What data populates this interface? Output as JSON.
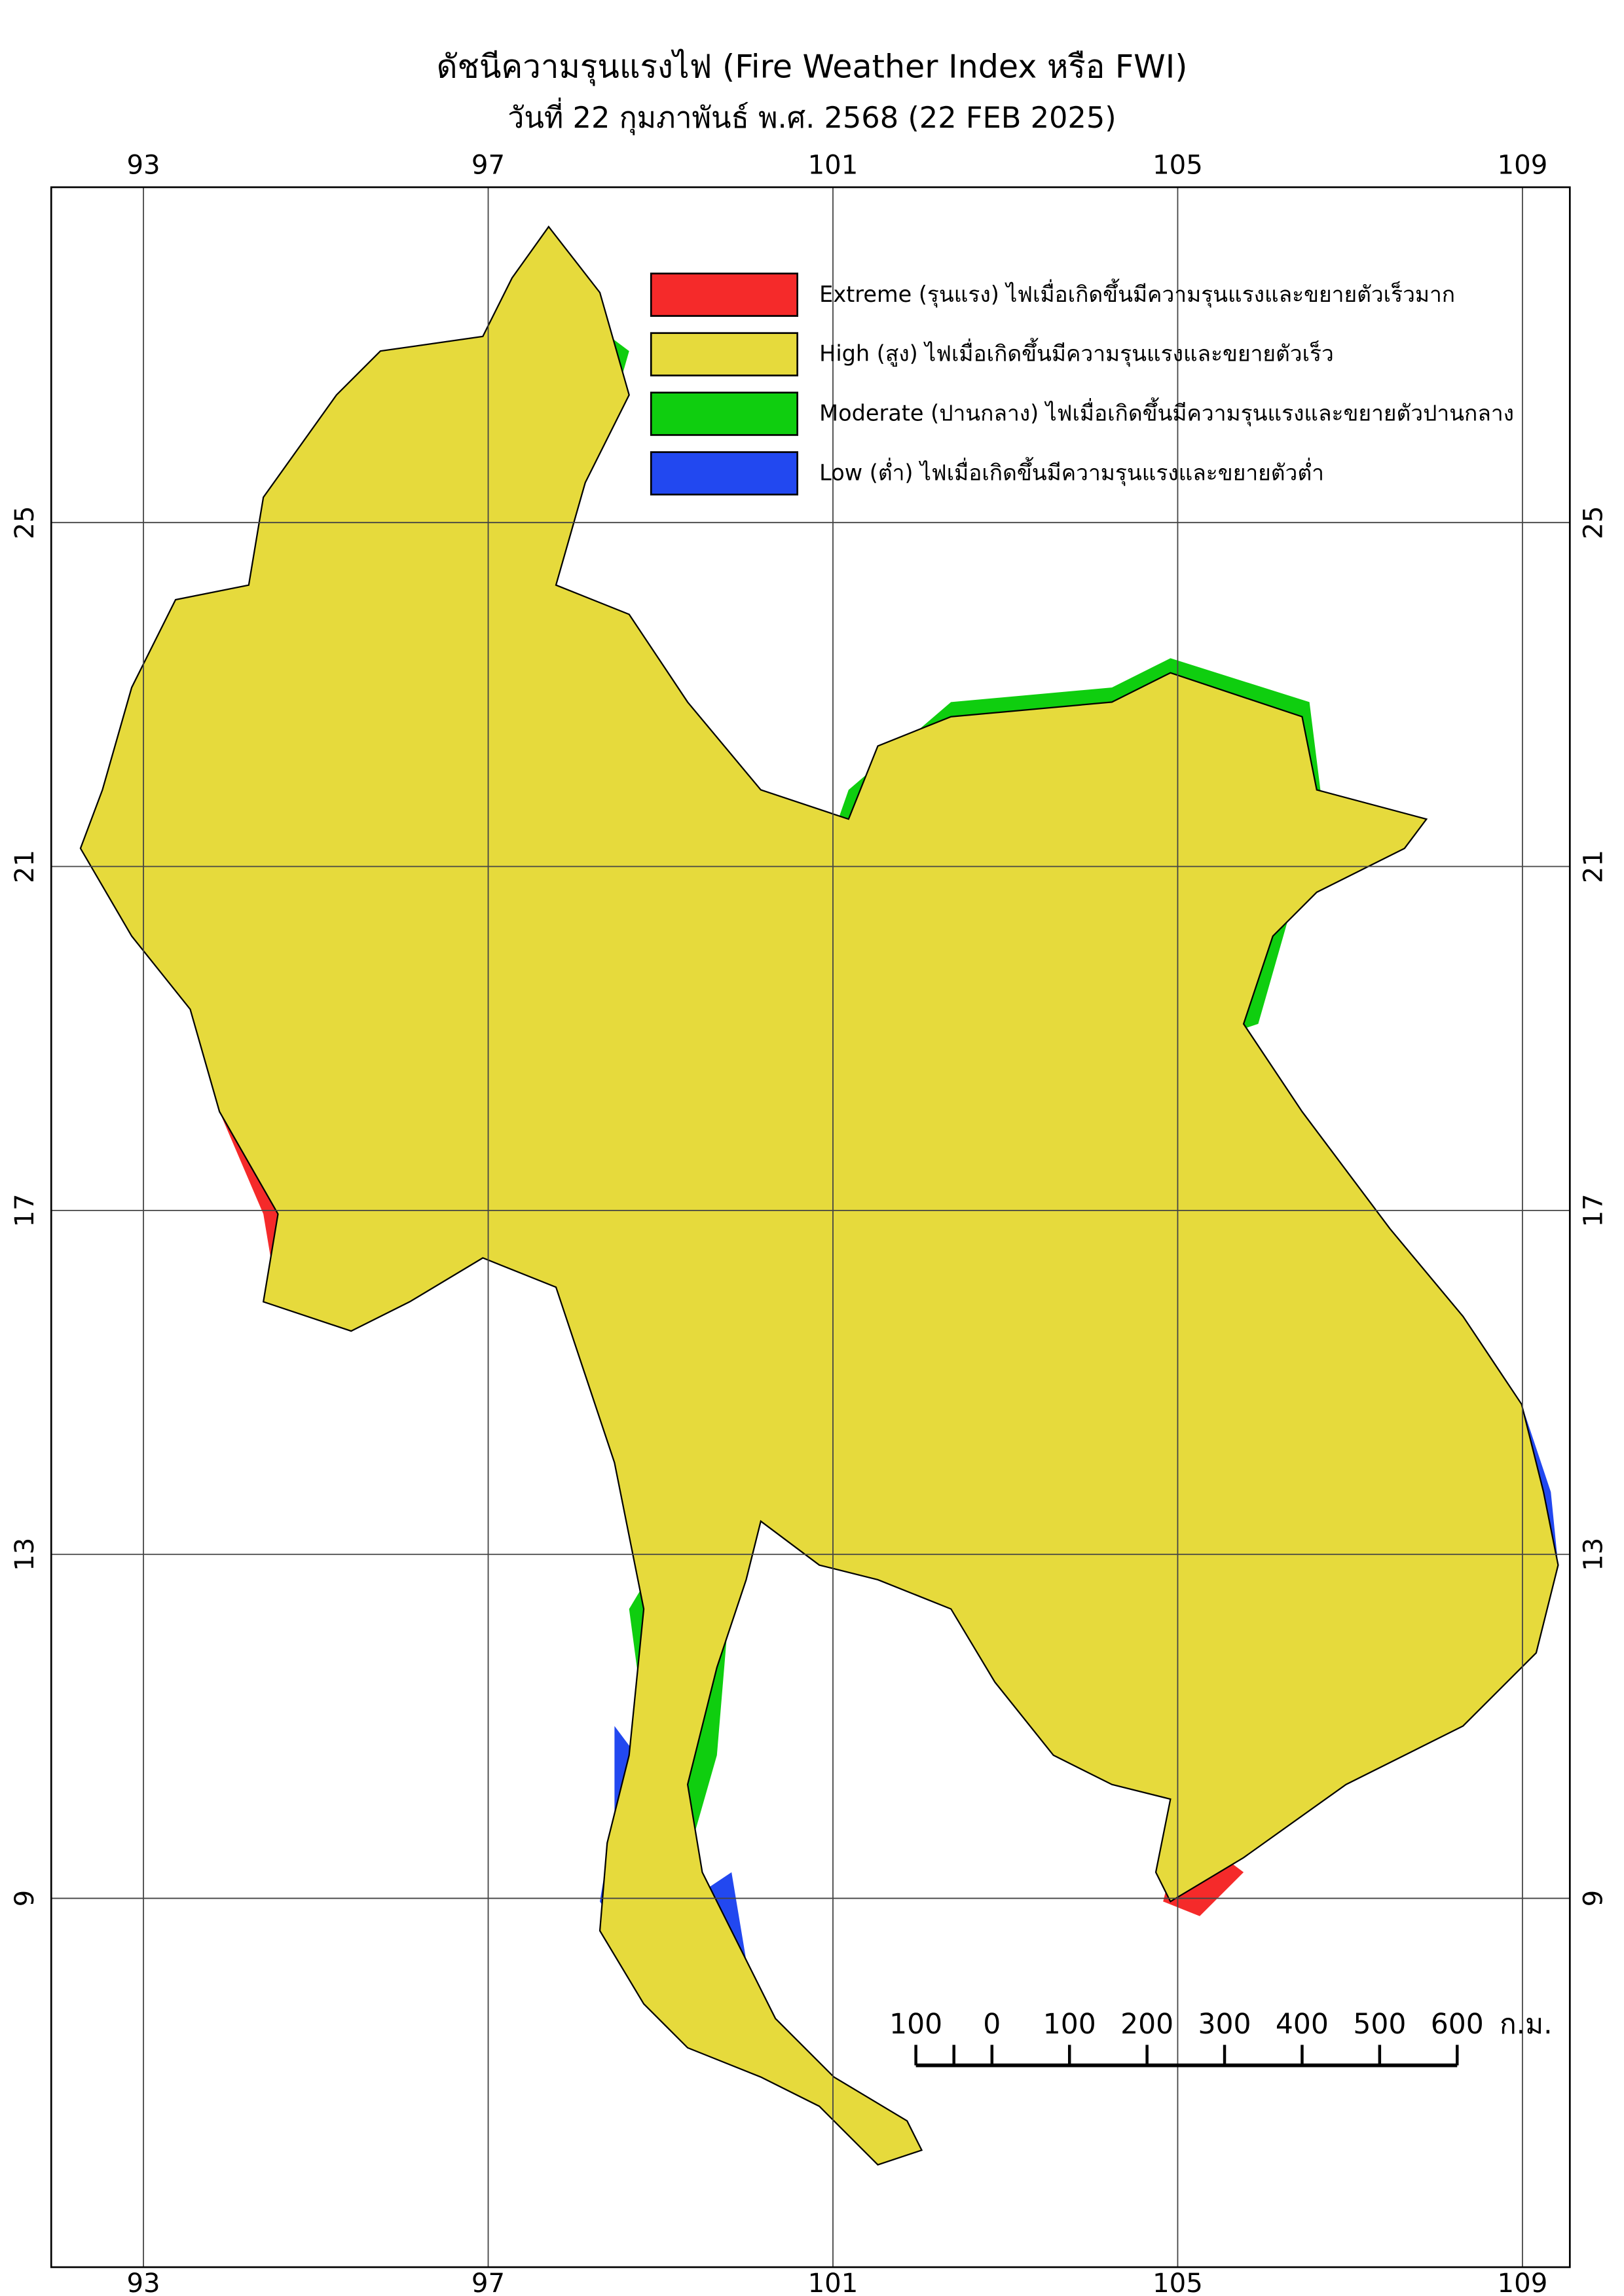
{
  "map": {
    "title": "ดัชนีความรุนแรงไฟ (Fire Weather Index หรือ FWI)",
    "subtitle": "วันที่ 22 กุมภาพันธ์ พ.ศ. 2568 (22 FEB 2025)",
    "lonlim": [
      91.93,
      109.55
    ],
    "latlim": [
      28.9,
      4.71
    ],
    "lon_ticks": [
      93,
      97,
      101,
      105,
      109
    ],
    "lat_ticks": [
      25,
      21,
      17,
      13,
      9
    ],
    "grid": true,
    "legend": [
      {
        "label": "Extreme (รุนแรง) ไฟเมื่อเกิดขึ้นมีความรุนแรงและขยายตัวเร็วมาก",
        "color": "#f52a2a"
      },
      {
        "label": "High (สูง) ไฟเมื่อเกิดขึ้นมีความรุนแรงและขยายตัวเร็ว",
        "color": "#e6da3c"
      },
      {
        "label": "Moderate (ปานกลาง) ไฟเมื่อเกิดขึ้นมีความรุนแรงและขยายตัวปานกลาง",
        "color": "#0fce0f"
      },
      {
        "label": "Low (ต่ำ) ไฟเมื่อเกิดขึ้นมีความรุนแรงและขยายตัวต่ำ",
        "color": "#2248f0"
      }
    ],
    "scale_bar": {
      "labels": [
        "100",
        "0",
        "100",
        "200",
        "300",
        "400",
        "500",
        "600"
      ],
      "unit": "ก.ม."
    }
  }
}
